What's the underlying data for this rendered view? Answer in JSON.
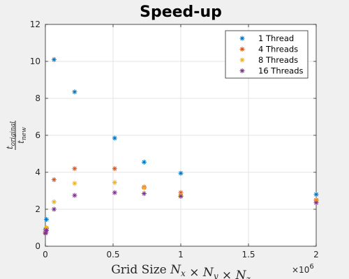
{
  "chart_data": {
    "type": "scatter",
    "title": "Speed-up",
    "xlabel": "Grid Size N_x × N_y × N_z",
    "ylabel": "t_original / t_new",
    "x_exponent_label": "×10^6",
    "xlim": [
      0,
      2
    ],
    "ylim": [
      0,
      12
    ],
    "x_ticks": [
      0,
      0.5,
      1,
      1.5,
      2
    ],
    "x_tick_labels": [
      "0",
      "0.5",
      "1",
      "1.5",
      "2"
    ],
    "y_ticks": [
      0,
      2,
      4,
      6,
      8,
      10,
      12
    ],
    "y_tick_labels": [
      "0",
      "2",
      "4",
      "6",
      "8",
      "10",
      "12"
    ],
    "grid": true,
    "legend_position": "top-right",
    "series": [
      {
        "name": "1 Thread",
        "color": "#0072BD",
        "points": [
          [
            0.001,
            0.9
          ],
          [
            0.008,
            1.45
          ],
          [
            0.064,
            10.1
          ],
          [
            0.216,
            8.35
          ],
          [
            0.512,
            5.85
          ],
          [
            0.729,
            4.55
          ],
          [
            1.0,
            3.95
          ],
          [
            2.0,
            2.8
          ]
        ]
      },
      {
        "name": "4 Threads",
        "color": "#D95319",
        "points": [
          [
            0.001,
            0.75
          ],
          [
            0.008,
            0.95
          ],
          [
            0.064,
            3.6
          ],
          [
            0.216,
            4.2
          ],
          [
            0.512,
            4.2
          ],
          [
            0.729,
            3.2
          ],
          [
            1.0,
            2.9
          ],
          [
            2.0,
            2.5
          ]
        ]
      },
      {
        "name": "8 Threads",
        "color": "#EDB120",
        "points": [
          [
            0.001,
            0.8
          ],
          [
            0.008,
            1.0
          ],
          [
            0.064,
            2.4
          ],
          [
            0.216,
            3.4
          ],
          [
            0.512,
            3.45
          ],
          [
            0.729,
            3.15
          ],
          [
            1.0,
            2.75
          ],
          [
            2.0,
            2.45
          ]
        ]
      },
      {
        "name": "16 Threads",
        "color": "#7E2F8E",
        "points": [
          [
            0.001,
            0.7
          ],
          [
            0.008,
            0.85
          ],
          [
            0.064,
            2.0
          ],
          [
            0.216,
            2.75
          ],
          [
            0.512,
            2.9
          ],
          [
            0.729,
            2.85
          ],
          [
            1.0,
            2.7
          ],
          [
            2.0,
            2.35
          ]
        ]
      }
    ]
  }
}
